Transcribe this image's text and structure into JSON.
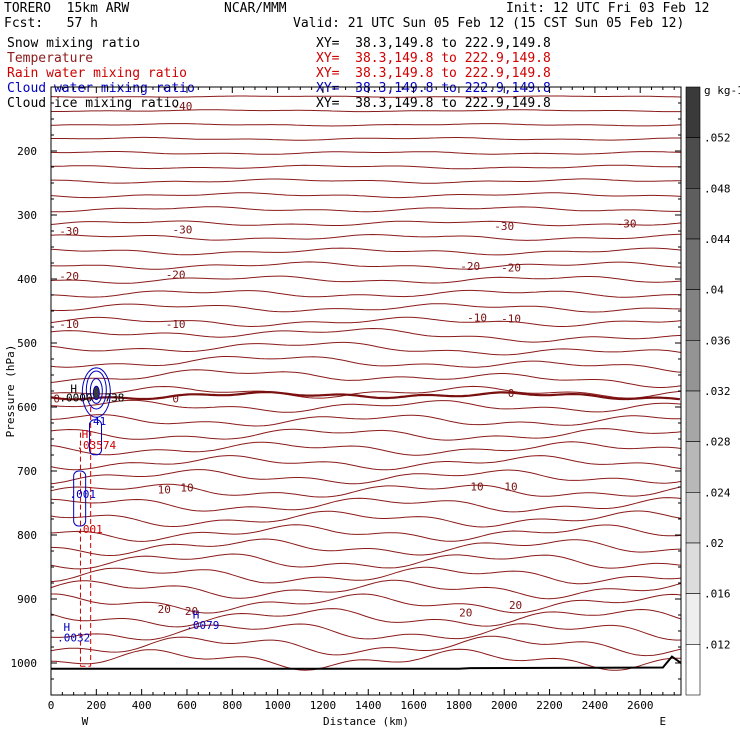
{
  "header": {
    "model": "TORERO  15km ARW",
    "center": "NCAR/MMM",
    "init": "Init: 12 UTC Fri 03 Feb 12",
    "fcst": "Fcst:   57 h",
    "valid": "Valid: 21 UTC Sun 05 Feb 12 (15 CST Sun 05 Feb 12)",
    "fields": [
      {
        "name": "Snow mixing ratio",
        "xy": "XY=  38.3,149.8 to 222.9,149.8",
        "color": "#000000"
      },
      {
        "name": "Temperature",
        "xy": "XY=  38.3,149.8 to 222.9,149.8",
        "color": "#8b1a1a"
      },
      {
        "name": "Rain water mixing ratio",
        "xy": "XY=  38.3,149.8 to 222.9,149.8",
        "color": "#d00000"
      },
      {
        "name": "Cloud water mixing ratio",
        "xy": "XY=  38.3,149.8 to 222.9,149.8",
        "color": "#0000c0"
      },
      {
        "name": "Cloud ice mixing ratio",
        "xy": "XY=  38.3,149.8 to 222.9,149.8",
        "color": "#000000"
      }
    ]
  },
  "chart_data": {
    "type": "line",
    "xlabel": "Distance (km)",
    "ylabel": "Pressure (hPa)",
    "xlim": [
      0,
      2780
    ],
    "ylim": [
      1050,
      100
    ],
    "x_ticks": [
      0,
      200,
      400,
      600,
      800,
      1000,
      1200,
      1400,
      1600,
      1800,
      2000,
      2200,
      2400,
      2600
    ],
    "y_ticks": [
      200,
      300,
      400,
      500,
      600,
      700,
      800,
      900,
      1000
    ],
    "x_end_labels": [
      "W",
      "E"
    ],
    "colorbar": {
      "unit": "g kg-1",
      "ticks": [
        ".052",
        ".048",
        ".044",
        ".04",
        ".036",
        ".032",
        ".028",
        ".024",
        ".02",
        ".016",
        ".012"
      ],
      "colors": [
        "#3a3a3a",
        "#4c4c4c",
        "#5e5e5e",
        "#707070",
        "#828282",
        "#949494",
        "#a6a6a6",
        "#b8b8b8",
        "#cacaca",
        "#dcdcdc",
        "#eeeeee"
      ]
    },
    "temperature_labels": [
      {
        "text": "-40",
        "x": 580,
        "p": 130
      },
      {
        "text": "-30",
        "x": 80,
        "p": 325
      },
      {
        "text": "-30",
        "x": 580,
        "p": 323
      },
      {
        "text": "-30",
        "x": 2000,
        "p": 317
      },
      {
        "text": "-30",
        "x": 2540,
        "p": 313
      },
      {
        "text": "-20",
        "x": 80,
        "p": 395
      },
      {
        "text": "-20",
        "x": 550,
        "p": 393
      },
      {
        "text": "-20",
        "x": 1850,
        "p": 380
      },
      {
        "text": "-20",
        "x": 2030,
        "p": 382
      },
      {
        "text": "-10",
        "x": 80,
        "p": 470
      },
      {
        "text": "-10",
        "x": 550,
        "p": 470
      },
      {
        "text": "-10",
        "x": 1880,
        "p": 460
      },
      {
        "text": "-10",
        "x": 2030,
        "p": 462
      },
      {
        "text": "0",
        "x": 25,
        "p": 587
      },
      {
        "text": "0",
        "x": 550,
        "p": 587
      },
      {
        "text": "0",
        "x": 2030,
        "p": 578
      },
      {
        "text": "10",
        "x": 500,
        "p": 729
      },
      {
        "text": "10",
        "x": 600,
        "p": 726
      },
      {
        "text": "10",
        "x": 1880,
        "p": 724
      },
      {
        "text": "10",
        "x": 2030,
        "p": 724
      },
      {
        "text": "20",
        "x": 500,
        "p": 916
      },
      {
        "text": "20",
        "x": 620,
        "p": 919
      },
      {
        "text": "20",
        "x": 1830,
        "p": 921
      },
      {
        "text": "20",
        "x": 2050,
        "p": 909
      }
    ],
    "extrema_labels": [
      {
        "text": "H",
        "x": 100,
        "p": 571,
        "color": "#000000"
      },
      {
        "text": ".0000",
        "x": 110,
        "p": 585,
        "color": "#000000"
      },
      {
        "text": "738",
        "x": 280,
        "p": 585,
        "color": "#000000"
      },
      {
        "text": ".41",
        "x": 200,
        "p": 622,
        "color": "#0000c0"
      },
      {
        "text": "H",
        "x": 150,
        "p": 642,
        "color": "#d00000"
      },
      {
        "text": ".03574",
        "x": 200,
        "p": 659,
        "color": "#d00000"
      },
      {
        "text": ".001",
        "x": 140,
        "p": 736,
        "color": "#0000c0"
      },
      {
        "text": ".001",
        "x": 170,
        "p": 791,
        "color": "#d00000"
      },
      {
        "text": "H",
        "x": 640,
        "p": 924,
        "color": "#0000c0"
      },
      {
        "text": ".0079",
        "x": 670,
        "p": 941,
        "color": "#0000c0"
      },
      {
        "text": "H",
        "x": 70,
        "p": 944,
        "color": "#0000c0"
      },
      {
        "text": ".0032",
        "x": 100,
        "p": 960,
        "color": "#0000c0"
      }
    ]
  }
}
